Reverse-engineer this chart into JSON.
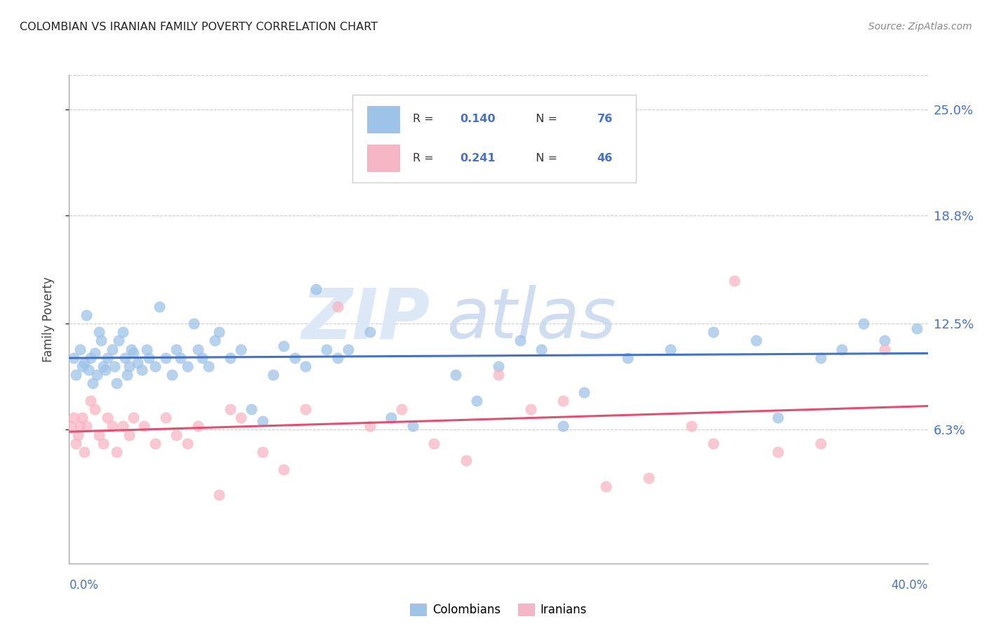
{
  "title": "COLOMBIAN VS IRANIAN FAMILY POVERTY CORRELATION CHART",
  "source": "Source: ZipAtlas.com",
  "ylabel": "Family Poverty",
  "ytick_labels": [
    "6.3%",
    "12.5%",
    "18.8%",
    "25.0%"
  ],
  "ytick_values": [
    6.3,
    12.5,
    18.8,
    25.0
  ],
  "xmin": 0.0,
  "xmax": 40.0,
  "ymin": -1.5,
  "ymax": 27.0,
  "colombian_color": "#9ec3e8",
  "colombian_line_color": "#4472c4",
  "iranian_color": "#f7b6c5",
  "iranian_line_color": "#e05070",
  "legend_label_colombians": "Colombians",
  "legend_label_iranians": "Iranians",
  "r_n_label_color": "#4472c4",
  "colombian_x": [
    0.3,
    0.5,
    0.6,
    0.7,
    0.8,
    0.9,
    1.0,
    1.1,
    1.2,
    1.3,
    1.4,
    1.5,
    1.6,
    1.7,
    1.8,
    2.0,
    2.1,
    2.2,
    2.3,
    2.5,
    2.6,
    2.7,
    2.8,
    2.9,
    3.0,
    3.2,
    3.4,
    3.6,
    3.7,
    4.0,
    4.2,
    4.5,
    4.8,
    5.0,
    5.2,
    5.5,
    5.8,
    6.0,
    6.2,
    6.5,
    6.8,
    7.0,
    7.5,
    8.0,
    8.5,
    9.0,
    9.5,
    10.0,
    10.5,
    11.0,
    11.5,
    12.0,
    12.5,
    13.0,
    14.0,
    15.0,
    16.0,
    17.0,
    18.0,
    19.0,
    20.0,
    21.0,
    22.0,
    23.0,
    24.0,
    26.0,
    28.0,
    30.0,
    32.0,
    33.0,
    35.0,
    36.0,
    37.0,
    38.0,
    39.5,
    0.2
  ],
  "colombian_y": [
    9.5,
    11.0,
    10.0,
    10.2,
    13.0,
    9.8,
    10.5,
    9.0,
    10.8,
    9.5,
    12.0,
    11.5,
    10.0,
    9.8,
    10.5,
    11.0,
    10.0,
    9.0,
    11.5,
    12.0,
    10.5,
    9.5,
    10.0,
    11.0,
    10.8,
    10.2,
    9.8,
    11.0,
    10.5,
    10.0,
    13.5,
    10.5,
    9.5,
    11.0,
    10.5,
    10.0,
    12.5,
    11.0,
    10.5,
    10.0,
    11.5,
    12.0,
    10.5,
    11.0,
    7.5,
    6.8,
    9.5,
    11.2,
    10.5,
    10.0,
    14.5,
    11.0,
    10.5,
    11.0,
    12.0,
    7.0,
    6.5,
    21.5,
    9.5,
    8.0,
    10.0,
    11.5,
    11.0,
    6.5,
    8.5,
    10.5,
    11.0,
    12.0,
    11.5,
    7.0,
    10.5,
    11.0,
    12.5,
    11.5,
    12.2,
    10.5
  ],
  "iranian_x": [
    0.1,
    0.2,
    0.3,
    0.4,
    0.5,
    0.6,
    0.7,
    0.8,
    1.0,
    1.2,
    1.4,
    1.6,
    1.8,
    2.0,
    2.2,
    2.5,
    2.8,
    3.0,
    3.5,
    4.0,
    4.5,
    5.0,
    5.5,
    6.0,
    7.0,
    7.5,
    8.0,
    9.0,
    10.0,
    11.0,
    12.5,
    14.0,
    15.5,
    17.0,
    18.5,
    20.0,
    21.5,
    23.0,
    25.0,
    27.0,
    29.0,
    30.0,
    31.0,
    33.0,
    35.0,
    38.0
  ],
  "iranian_y": [
    6.5,
    7.0,
    5.5,
    6.0,
    6.5,
    7.0,
    5.0,
    6.5,
    8.0,
    7.5,
    6.0,
    5.5,
    7.0,
    6.5,
    5.0,
    6.5,
    6.0,
    7.0,
    6.5,
    5.5,
    7.0,
    6.0,
    5.5,
    6.5,
    2.5,
    7.5,
    7.0,
    5.0,
    4.0,
    7.5,
    13.5,
    6.5,
    7.5,
    5.5,
    4.5,
    9.5,
    7.5,
    8.0,
    3.0,
    3.5,
    6.5,
    5.5,
    15.0,
    5.0,
    5.5,
    11.0
  ]
}
